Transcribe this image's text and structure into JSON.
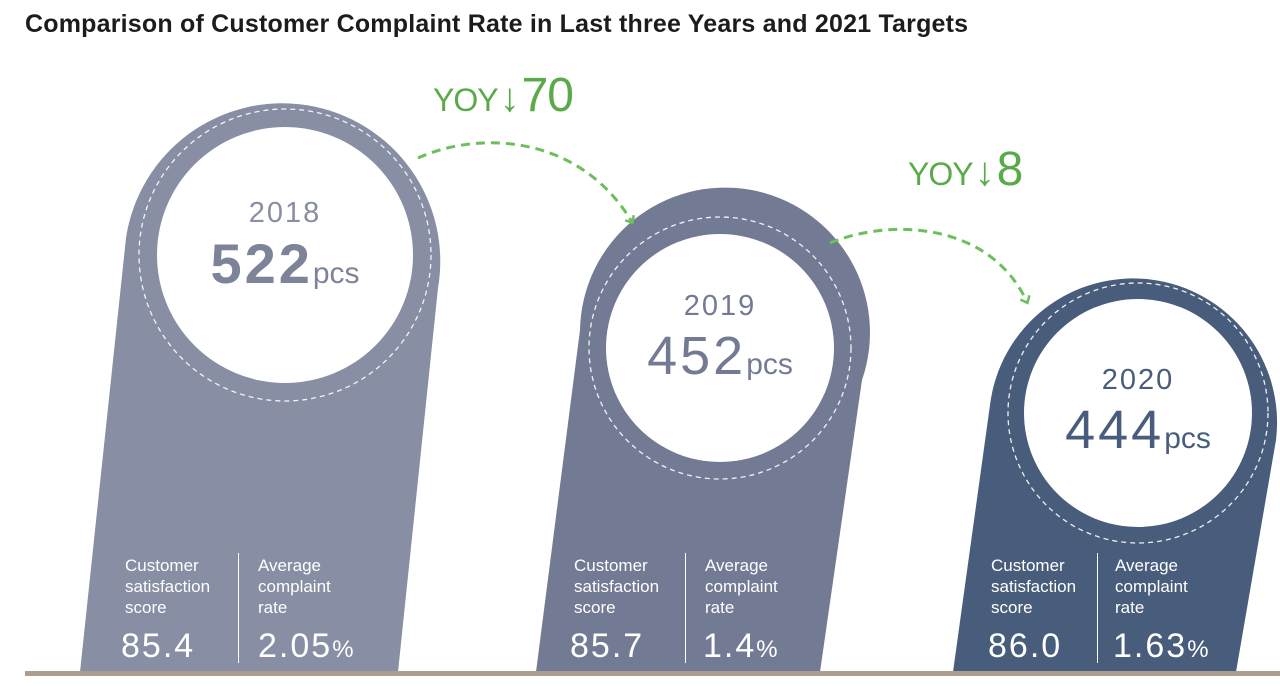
{
  "title": "Comparison of Customer Complaint Rate in Last three Years and 2021 Targets",
  "colors": {
    "pill_2018": "#888ea3",
    "pill_2019": "#737b94",
    "pill_2020": "#485d7b",
    "yoy_green": "#5aaa4a",
    "baseline": "#a99e90"
  },
  "changes": [
    {
      "label": "YOY",
      "arrow": "↓",
      "value": "70"
    },
    {
      "label": "YOY",
      "arrow": "↓",
      "value": "8"
    }
  ],
  "years": [
    {
      "year": "2018",
      "count": "522",
      "unit": "pcs",
      "satisfaction_label": "Customer satisfaction score",
      "satisfaction_value": "85.4",
      "complaint_label": "Average complaint rate",
      "complaint_value": "2.05",
      "complaint_unit": "%"
    },
    {
      "year": "2019",
      "count": "452",
      "unit": "pcs",
      "satisfaction_label": "Customer satisfaction score",
      "satisfaction_value": "85.7",
      "complaint_label": "Average complaint rate",
      "complaint_value": "1.4",
      "complaint_unit": "%"
    },
    {
      "year": "2020",
      "count": "444",
      "unit": "pcs",
      "satisfaction_label": "Customer satisfaction score",
      "satisfaction_value": "86.0",
      "complaint_label": "Average complaint rate",
      "complaint_value": "1.63",
      "complaint_unit": "%"
    }
  ]
}
